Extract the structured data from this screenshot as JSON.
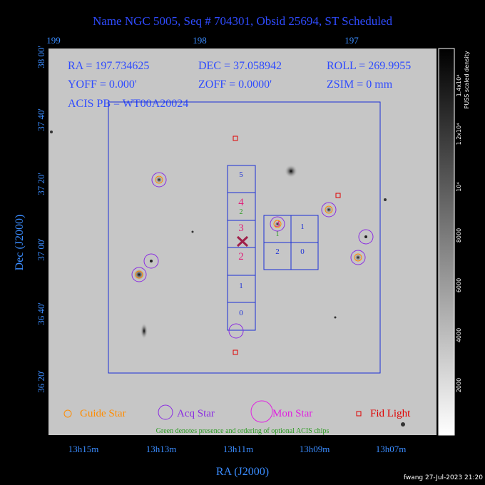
{
  "header": {
    "title": "Name NGC 5005, Seq # 704301, Obsid 25694, ST Scheduled"
  },
  "axes": {
    "top_ticks": [
      "199",
      "198",
      "197"
    ],
    "left_ticks": [
      "38 00'",
      "37 40'",
      "37 20'",
      "37 00'",
      "36 40'",
      "36 20'"
    ],
    "bottom_ticks": [
      "13h15m",
      "13h13m",
      "13h11m",
      "13h09m",
      "13h07m"
    ],
    "x_label": "RA (J2000)",
    "y_label": "Dec (J2000)"
  },
  "info": [
    "RA = 197.734625",
    "DEC = 37.058942",
    "ROLL = 269.9955",
    "YOFF =    0.000'",
    "ZOFF =  0.0000'",
    "ZSIM = 0 mm",
    "ACIS PB = WT00A20024"
  ],
  "chips": {
    "column": [
      "5",
      "4",
      "2",
      "3",
      "2",
      "1",
      "0"
    ],
    "block": [
      "3",
      "1",
      "1",
      "2",
      "0"
    ]
  },
  "legend": {
    "guide": "Guide Star",
    "acq": "Acq Star",
    "mon": "Mon Star",
    "fid": "Fid Light",
    "note": "Green denotes presence and ordering of optional ACIS chips"
  },
  "colorbar": {
    "title": "PUSS scaled density",
    "labels": [
      "1.4x10⁴",
      "1.2x10⁴",
      "10⁴",
      "8000",
      "6000",
      "4000",
      "2000"
    ]
  },
  "footer": "fwang 27-Jul-2023 21:20"
}
